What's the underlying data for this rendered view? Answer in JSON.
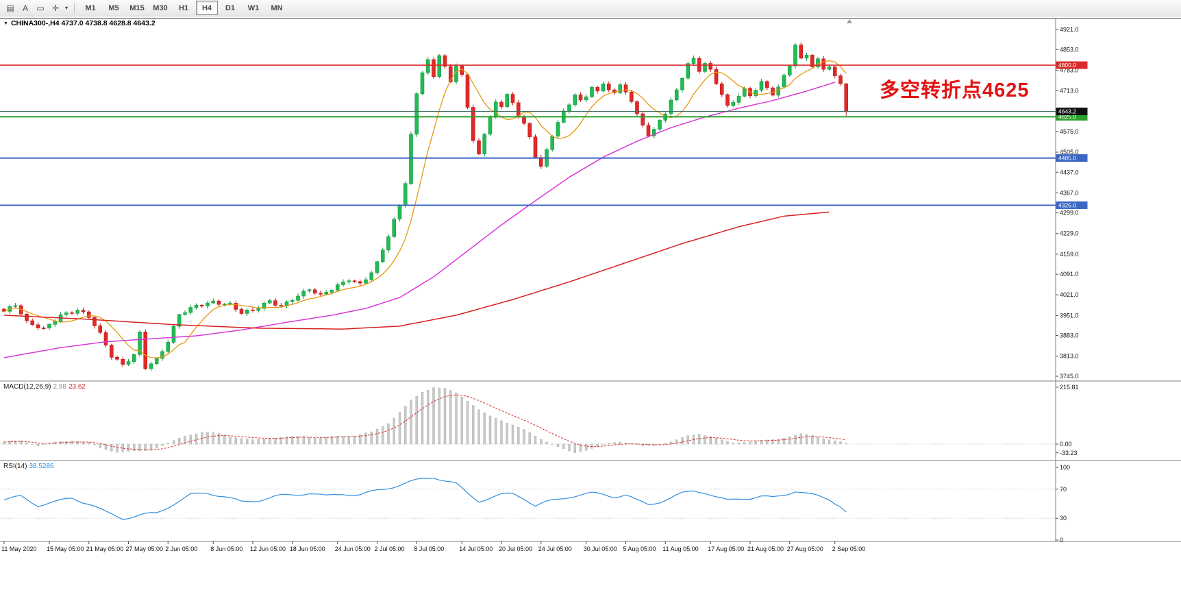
{
  "toolbar": {
    "tool_icons": [
      {
        "name": "templates-icon",
        "glyph": "▤"
      },
      {
        "name": "text-tool-icon",
        "glyph": "A"
      },
      {
        "name": "rectangle-tool-icon",
        "glyph": "▭"
      },
      {
        "name": "crosshair-tool-icon",
        "glyph": "✛"
      },
      {
        "name": "cursor-dropdown-caret",
        "glyph": "▾"
      }
    ],
    "timeframes": [
      "M1",
      "M5",
      "M15",
      "M30",
      "H1",
      "H4",
      "D1",
      "W1",
      "MN"
    ],
    "active_timeframe": "H4"
  },
  "chart": {
    "collapse_icon": "▼",
    "symbol_header": "CHINA300-,H4 4737.0 4738.8 4628.8 4643.2",
    "annotation": {
      "text": "多空转折点4625",
      "color": "#e31212"
    },
    "colors": {
      "up": "#169a40",
      "up_fill": "#22bb55",
      "down": "#c01818",
      "down_fill": "#e02a2a",
      "ma_fast": "#e8980c",
      "ma_mid": "#d838d8",
      "ma_slow": "#d82020",
      "macd_signal": "#d92b2b",
      "rsi": "#2f8de0"
    }
  },
  "chart_data": {
    "type": "candlestick",
    "title": "CHINA300- H4 candlestick chart with MACD and RSI",
    "symbol": "CHINA300-",
    "timeframe": "H4",
    "bars": 150,
    "ohlc_last": {
      "open": 4737.0,
      "high": 4738.8,
      "low": 4628.8,
      "close": 4643.2
    },
    "price_axis_range": [
      3745,
      4921
    ],
    "price_axis_ticks": [
      "4921.0",
      "4853.0",
      "4783.0",
      "4713.0",
      "4575.0",
      "4505.0",
      "4437.0",
      "4367.0",
      "4299.0",
      "4229.0",
      "4159.0",
      "4091.0",
      "4021.0",
      "3951.0",
      "3883.0",
      "3813.0",
      "3745.0"
    ],
    "hlines": [
      {
        "price": 4800.0,
        "label": "4800.0",
        "line_color": "#d92b2b",
        "badge_color": "#d92b2b",
        "width": 1.6,
        "type": "resistance"
      },
      {
        "price": 4625.0,
        "label": "4625.0",
        "line_color": "#2ca02c",
        "badge_color": "#2ca02c",
        "width": 2,
        "type": "pivot"
      },
      {
        "price": 4485.0,
        "label": "4485.0",
        "line_color": "#3a66c4",
        "badge_color": "#3a66c4",
        "width": 2,
        "type": "support"
      },
      {
        "price": 4325.0,
        "label": "4325.0",
        "line_color": "#3a66c4",
        "badge_color": "#3a66c4",
        "width": 2,
        "type": "support"
      },
      {
        "price": 4643.2,
        "label": "4643.2",
        "line_color": "#3d6b5e",
        "badge_color": "#111111",
        "width": 1,
        "type": "current"
      }
    ],
    "close_keyframes": [
      [
        0,
        3965
      ],
      [
        2,
        3985
      ],
      [
        4,
        3925
      ],
      [
        7,
        3905
      ],
      [
        10,
        3955
      ],
      [
        13,
        3970
      ],
      [
        15,
        3945
      ],
      [
        17,
        3885
      ],
      [
        19,
        3812
      ],
      [
        21,
        3785
      ],
      [
        23,
        3820
      ],
      [
        24,
        3895
      ],
      [
        25,
        3778
      ],
      [
        27,
        3800
      ],
      [
        29,
        3860
      ],
      [
        31,
        3952
      ],
      [
        34,
        3985
      ],
      [
        37,
        4000
      ],
      [
        40,
        3988
      ],
      [
        42,
        3958
      ],
      [
        44,
        3965
      ],
      [
        47,
        4000
      ],
      [
        49,
        3985
      ],
      [
        51,
        4010
      ],
      [
        54,
        4040
      ],
      [
        56,
        4015
      ],
      [
        59,
        4050
      ],
      [
        61,
        4075
      ],
      [
        63,
        4060
      ],
      [
        65,
        4100
      ],
      [
        66,
        4130
      ],
      [
        68,
        4220
      ],
      [
        70,
        4320
      ],
      [
        71,
        4400
      ],
      [
        72,
        4560
      ],
      [
        73,
        4700
      ],
      [
        74,
        4780
      ],
      [
        75,
        4820
      ],
      [
        76,
        4760
      ],
      [
        77,
        4840
      ],
      [
        78,
        4800
      ],
      [
        79,
        4740
      ],
      [
        80,
        4800
      ],
      [
        81,
        4770
      ],
      [
        82,
        4650
      ],
      [
        83,
        4540
      ],
      [
        84,
        4500
      ],
      [
        85,
        4560
      ],
      [
        86,
        4620
      ],
      [
        87,
        4680
      ],
      [
        88,
        4660
      ],
      [
        89,
        4700
      ],
      [
        90,
        4680
      ],
      [
        91,
        4630
      ],
      [
        92,
        4600
      ],
      [
        93,
        4560
      ],
      [
        94,
        4490
      ],
      [
        95,
        4450
      ],
      [
        96,
        4510
      ],
      [
        97,
        4560
      ],
      [
        98,
        4600
      ],
      [
        99,
        4640
      ],
      [
        100,
        4670
      ],
      [
        101,
        4700
      ],
      [
        102,
        4680
      ],
      [
        103,
        4700
      ],
      [
        104,
        4730
      ],
      [
        105,
        4710
      ],
      [
        106,
        4740
      ],
      [
        107,
        4720
      ],
      [
        108,
        4700
      ],
      [
        109,
        4730
      ],
      [
        110,
        4710
      ],
      [
        111,
        4670
      ],
      [
        112,
        4630
      ],
      [
        113,
        4600
      ],
      [
        114,
        4560
      ],
      [
        115,
        4580
      ],
      [
        116,
        4620
      ],
      [
        117,
        4640
      ],
      [
        118,
        4680
      ],
      [
        119,
        4720
      ],
      [
        120,
        4760
      ],
      [
        121,
        4800
      ],
      [
        122,
        4820
      ],
      [
        123,
        4780
      ],
      [
        124,
        4800
      ],
      [
        125,
        4780
      ],
      [
        126,
        4740
      ],
      [
        127,
        4700
      ],
      [
        128,
        4660
      ],
      [
        129,
        4680
      ],
      [
        130,
        4700
      ],
      [
        131,
        4720
      ],
      [
        132,
        4700
      ],
      [
        133,
        4720
      ],
      [
        134,
        4740
      ],
      [
        135,
        4720
      ],
      [
        136,
        4700
      ],
      [
        137,
        4720
      ],
      [
        138,
        4760
      ],
      [
        139,
        4800
      ],
      [
        140,
        4868
      ],
      [
        141,
        4820
      ],
      [
        142,
        4840
      ],
      [
        143,
        4800
      ],
      [
        144,
        4820
      ],
      [
        145,
        4790
      ],
      [
        146,
        4800
      ],
      [
        147,
        4760
      ],
      [
        148,
        4737
      ],
      [
        149,
        4643.2
      ]
    ],
    "ma_fast_period": 8,
    "ma_mid_keyframes": [
      [
        0,
        3808
      ],
      [
        10,
        3842
      ],
      [
        18,
        3862
      ],
      [
        26,
        3872
      ],
      [
        34,
        3882
      ],
      [
        42,
        3902
      ],
      [
        50,
        3928
      ],
      [
        58,
        3952
      ],
      [
        64,
        3975
      ],
      [
        70,
        4012
      ],
      [
        76,
        4082
      ],
      [
        82,
        4170
      ],
      [
        88,
        4258
      ],
      [
        94,
        4340
      ],
      [
        100,
        4420
      ],
      [
        106,
        4488
      ],
      [
        112,
        4542
      ],
      [
        118,
        4588
      ],
      [
        124,
        4624
      ],
      [
        130,
        4654
      ],
      [
        136,
        4680
      ],
      [
        142,
        4712
      ],
      [
        147,
        4742
      ]
    ],
    "ma_slow_keyframes": [
      [
        0,
        3952
      ],
      [
        15,
        3938
      ],
      [
        30,
        3920
      ],
      [
        45,
        3908
      ],
      [
        60,
        3905
      ],
      [
        70,
        3915
      ],
      [
        80,
        3952
      ],
      [
        90,
        4005
      ],
      [
        100,
        4065
      ],
      [
        110,
        4130
      ],
      [
        120,
        4195
      ],
      [
        130,
        4252
      ],
      [
        138,
        4288
      ],
      [
        146,
        4302
      ]
    ],
    "time_ticks": [
      [
        "11 May 2020",
        0
      ],
      [
        "15 May 05:00",
        8
      ],
      [
        "21 May 05:00",
        15
      ],
      [
        "27 May 05:00",
        22
      ],
      [
        "2 Jun 05:00",
        29
      ],
      [
        "8 Jun 05:00",
        37
      ],
      [
        "12 Jun 05:00",
        44
      ],
      [
        "18 Jun 05:00",
        51
      ],
      [
        "24 Jun 05:00",
        59
      ],
      [
        "2 Jul 05:00",
        66
      ],
      [
        "8 Jul 05:00",
        73
      ],
      [
        "14 Jul 05:00",
        81
      ],
      [
        "20 Jul 05:00",
        88
      ],
      [
        "24 Jul 05:00",
        95
      ],
      [
        "30 Jul 05:00",
        103
      ],
      [
        "5 Aug 05:00",
        110
      ],
      [
        "11 Aug 05:00",
        117
      ],
      [
        "17 Aug 05:00",
        125
      ],
      [
        "21 Aug 05:00",
        132
      ],
      [
        "27 Aug 05:00",
        139
      ],
      [
        "2 Sep 05:00",
        147
      ]
    ],
    "macd": {
      "label": "MACD(12,26,9)",
      "main_value": "2.98",
      "signal_value": "23.62",
      "max": 215.81,
      "min": -33.23,
      "axis_ticks": [
        "215.81",
        "0.00",
        "-33.23"
      ],
      "keyframes": [
        [
          0,
          8
        ],
        [
          3,
          12
        ],
        [
          6,
          -5
        ],
        [
          9,
          6
        ],
        [
          12,
          14
        ],
        [
          15,
          5
        ],
        [
          17,
          -15
        ],
        [
          20,
          -30
        ],
        [
          23,
          -28
        ],
        [
          26,
          -22
        ],
        [
          29,
          2
        ],
        [
          32,
          32
        ],
        [
          35,
          45
        ],
        [
          38,
          40
        ],
        [
          41,
          25
        ],
        [
          44,
          15
        ],
        [
          47,
          22
        ],
        [
          50,
          26
        ],
        [
          53,
          30
        ],
        [
          56,
          22
        ],
        [
          59,
          30
        ],
        [
          62,
          32
        ],
        [
          65,
          45
        ],
        [
          68,
          80
        ],
        [
          70,
          120
        ],
        [
          72,
          165
        ],
        [
          74,
          198
        ],
        [
          76,
          215.8
        ],
        [
          78,
          210
        ],
        [
          80,
          194
        ],
        [
          82,
          165
        ],
        [
          84,
          130
        ],
        [
          86,
          105
        ],
        [
          88,
          90
        ],
        [
          90,
          74
        ],
        [
          92,
          54
        ],
        [
          94,
          30
        ],
        [
          96,
          10
        ],
        [
          98,
          -10
        ],
        [
          100,
          -28
        ],
        [
          101,
          -33.2
        ],
        [
          103,
          -22
        ],
        [
          105,
          -8
        ],
        [
          107,
          2
        ],
        [
          109,
          9
        ],
        [
          111,
          4
        ],
        [
          113,
          -8
        ],
        [
          115,
          -6
        ],
        [
          117,
          4
        ],
        [
          119,
          16
        ],
        [
          121,
          30
        ],
        [
          123,
          39
        ],
        [
          125,
          30
        ],
        [
          127,
          14
        ],
        [
          129,
          5
        ],
        [
          131,
          8
        ],
        [
          133,
          12
        ],
        [
          135,
          14
        ],
        [
          137,
          20
        ],
        [
          139,
          30
        ],
        [
          141,
          38
        ],
        [
          143,
          32
        ],
        [
          145,
          22
        ],
        [
          147,
          12
        ],
        [
          149,
          3
        ]
      ]
    },
    "rsi": {
      "label": "RSI(14)",
      "value": "38.5286",
      "range": [
        0,
        100
      ],
      "levels": [
        30,
        70
      ],
      "axis_ticks": [
        "100",
        "70",
        "30",
        "0"
      ],
      "keyframes": [
        [
          0,
          55
        ],
        [
          3,
          60
        ],
        [
          6,
          48
        ],
        [
          9,
          52
        ],
        [
          12,
          58
        ],
        [
          15,
          50
        ],
        [
          18,
          38
        ],
        [
          21,
          30
        ],
        [
          24,
          34
        ],
        [
          27,
          37
        ],
        [
          30,
          50
        ],
        [
          33,
          62
        ],
        [
          36,
          65
        ],
        [
          39,
          60
        ],
        [
          42,
          52
        ],
        [
          45,
          55
        ],
        [
          48,
          60
        ],
        [
          51,
          62
        ],
        [
          54,
          65
        ],
        [
          57,
          60
        ],
        [
          60,
          64
        ],
        [
          63,
          62
        ],
        [
          66,
          68
        ],
        [
          69,
          74
        ],
        [
          72,
          80
        ],
        [
          74,
          84
        ],
        [
          76,
          87
        ],
        [
          78,
          82
        ],
        [
          80,
          77
        ],
        [
          82,
          64
        ],
        [
          84,
          54
        ],
        [
          86,
          58
        ],
        [
          88,
          62
        ],
        [
          90,
          64
        ],
        [
          92,
          58
        ],
        [
          94,
          47
        ],
        [
          96,
          52
        ],
        [
          98,
          56
        ],
        [
          100,
          60
        ],
        [
          102,
          62
        ],
        [
          104,
          64
        ],
        [
          106,
          63
        ],
        [
          108,
          60
        ],
        [
          110,
          62
        ],
        [
          112,
          54
        ],
        [
          114,
          49
        ],
        [
          116,
          53
        ],
        [
          118,
          58
        ],
        [
          120,
          64
        ],
        [
          122,
          68
        ],
        [
          124,
          66
        ],
        [
          126,
          59
        ],
        [
          128,
          54
        ],
        [
          130,
          57
        ],
        [
          132,
          58
        ],
        [
          134,
          60
        ],
        [
          136,
          58
        ],
        [
          138,
          62
        ],
        [
          140,
          68
        ],
        [
          142,
          64
        ],
        [
          144,
          60
        ],
        [
          146,
          56
        ],
        [
          148,
          47
        ],
        [
          149,
          38.53
        ]
      ]
    }
  }
}
